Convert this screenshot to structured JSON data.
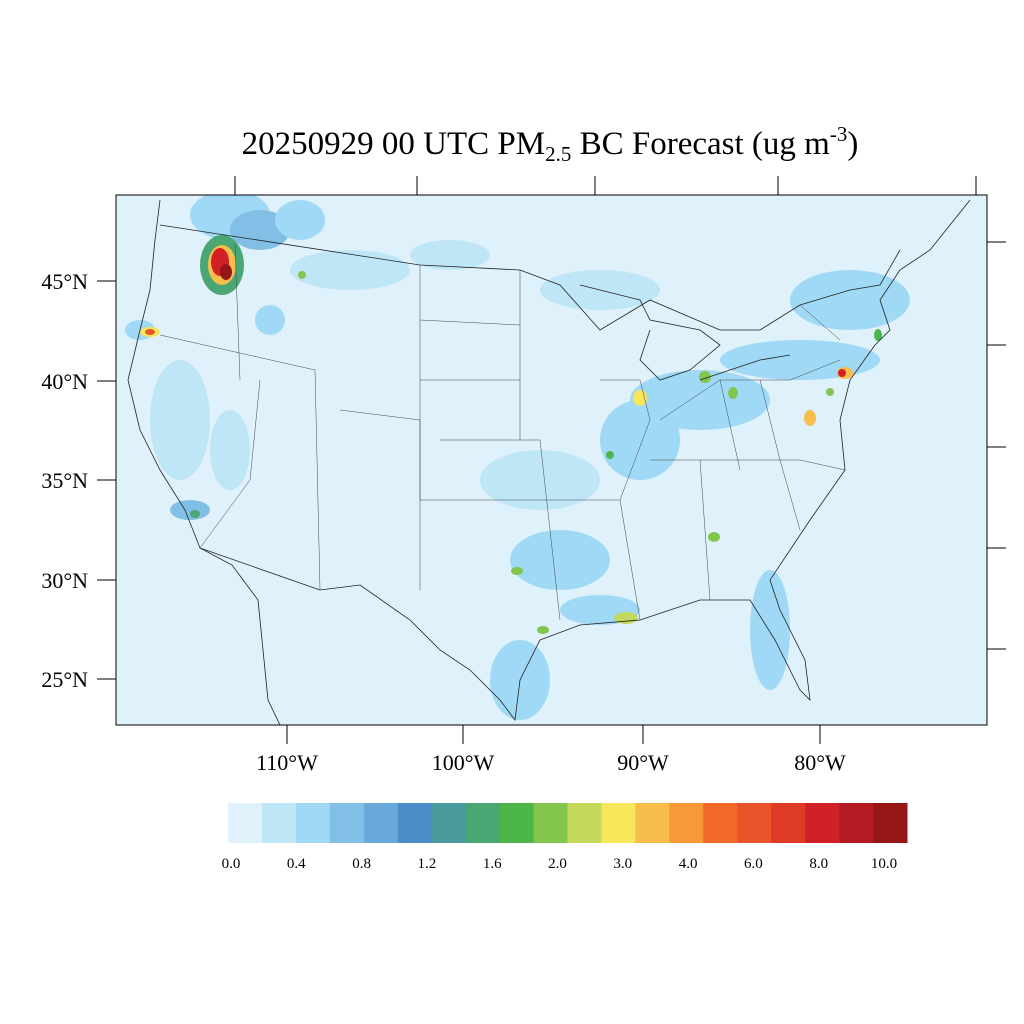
{
  "title": {
    "date": "20250929",
    "hour": "00 UTC",
    "species": "PM",
    "species_sub": "2.5",
    "rest": "BC Forecast (ug m",
    "units_sup": "-3",
    "close": ")"
  },
  "map": {
    "lat_labels": [
      "45°N",
      "40°N",
      "35°N",
      "30°N",
      "25°N"
    ],
    "lon_labels": [
      "110°W",
      "100°W",
      "90°W",
      "80°W"
    ],
    "background_color": "#dff1fa"
  },
  "colorbar": {
    "colors": [
      "#dff1fa",
      "#bfe6f7",
      "#9fd9f5",
      "#82bfe6",
      "#69a8da",
      "#4a8dc8",
      "#4a9a9d",
      "#4aa773",
      "#4cb648",
      "#84c54e",
      "#c4d85a",
      "#f7e65a",
      "#f8bd4a",
      "#f7983b",
      "#f3692a",
      "#e8532a",
      "#df3a26",
      "#d22027",
      "#b31c22",
      "#961618"
    ],
    "labels": [
      "0.0",
      "0.4",
      "0.8",
      "1.2",
      "1.6",
      "2.0",
      "3.0",
      "4.0",
      "6.0",
      "8.0",
      "10.0"
    ]
  }
}
